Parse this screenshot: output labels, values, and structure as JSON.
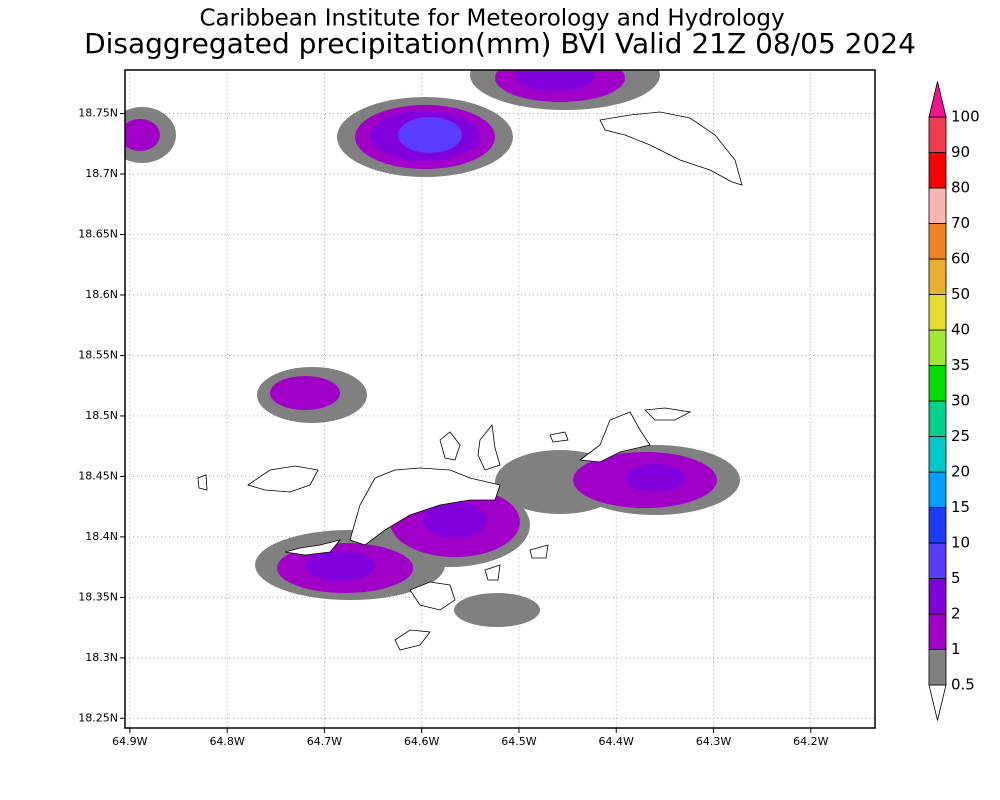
{
  "map": {
    "title": "Caribbean Institute for Meteorology and Hydrology",
    "subtitle": "Disaggregated precipitation(mm) BVI Valid 21Z 08/05 2024",
    "lonlim": [
      -64.905,
      -64.134
    ],
    "latlim": [
      18.242,
      18.786
    ],
    "lonticks": [
      {
        "value": -64.9,
        "label": "64.9W"
      },
      {
        "value": -64.8,
        "label": "64.8W"
      },
      {
        "value": -64.7,
        "label": "64.7W"
      },
      {
        "value": -64.6,
        "label": "64.6W"
      },
      {
        "value": -64.5,
        "label": "64.5W"
      },
      {
        "value": -64.4,
        "label": "64.4W"
      },
      {
        "value": -64.3,
        "label": "64.3W"
      },
      {
        "value": -64.2,
        "label": "64.2W"
      }
    ],
    "latticks": [
      {
        "value": 18.25,
        "label": "18.25N"
      },
      {
        "value": 18.3,
        "label": "18.3N"
      },
      {
        "value": 18.35,
        "label": "18.35N"
      },
      {
        "value": 18.4,
        "label": "18.4N"
      },
      {
        "value": 18.45,
        "label": "18.45N"
      },
      {
        "value": 18.5,
        "label": "18.5N"
      },
      {
        "value": 18.55,
        "label": "18.55N"
      },
      {
        "value": 18.6,
        "label": "18.6N"
      },
      {
        "value": 18.65,
        "label": "18.65N"
      },
      {
        "value": 18.7,
        "label": "18.7N"
      },
      {
        "value": 18.75,
        "label": "18.75N"
      }
    ],
    "grid": true,
    "levels": [
      0.5,
      1,
      2,
      5,
      10,
      15,
      20,
      25,
      30,
      35,
      40,
      50,
      60,
      70,
      80,
      90,
      100
    ],
    "colors": [
      "#ffffff",
      "#808080",
      "#a000c8",
      "#8200dc",
      "#5a3cff",
      "#1e3cff",
      "#00a0ff",
      "#00c8c8",
      "#00d28c",
      "#00dc00",
      "#a0e632",
      "#e6dc32",
      "#e6af2d",
      "#f08228",
      "#fab4b4",
      "#fa0000",
      "#f03c50",
      "#f0148c"
    ]
  }
}
